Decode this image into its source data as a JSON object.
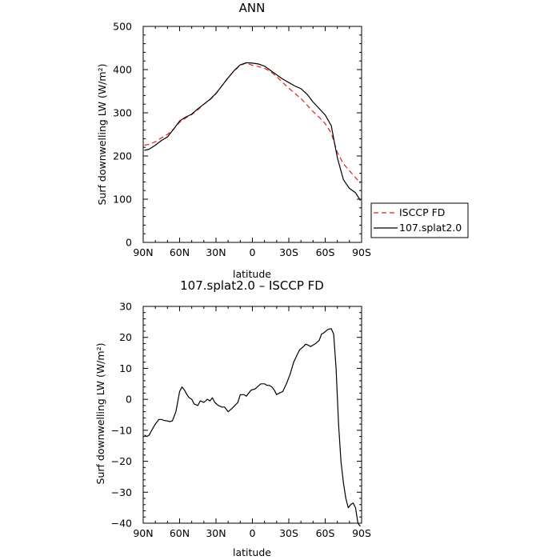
{
  "colors": {
    "model": "#000000",
    "obs": "#e0201c",
    "axis": "#000000",
    "background": "#ffffff"
  },
  "chart_data": [
    {
      "type": "line",
      "title": "ANN",
      "xlabel": "latitude",
      "ylabel": "Surf downwelling LW (W/m²)",
      "xlim": [
        90,
        -90
      ],
      "ylim": [
        0,
        500
      ],
      "x_ticks": [
        90,
        60,
        30,
        0,
        -30,
        -60,
        -90
      ],
      "x_tick_labels": [
        "90N",
        "60N",
        "30N",
        "0",
        "30S",
        "60S",
        "90S"
      ],
      "y_ticks": [
        0,
        100,
        200,
        300,
        400,
        500
      ],
      "y_tick_labels": [
        "0",
        "100",
        "200",
        "300",
        "400",
        "500"
      ],
      "grid": false,
      "legend_position": "right-bottom",
      "series": [
        {
          "name": "ISCCP FD",
          "style": "dashed",
          "color": "#e0201c",
          "x": [
            89,
            85,
            80,
            75,
            70,
            65,
            60,
            55,
            50,
            45,
            40,
            35,
            30,
            25,
            20,
            15,
            10,
            5,
            0,
            -5,
            -10,
            -15,
            -20,
            -25,
            -30,
            -35,
            -40,
            -45,
            -50,
            -55,
            -60,
            -65,
            -70,
            -75,
            -80,
            -85,
            -89
          ],
          "y": [
            225,
            227,
            233,
            242,
            250,
            262,
            278,
            288,
            296,
            307,
            320,
            330,
            344,
            363,
            382,
            397,
            410,
            415,
            410,
            407,
            403,
            395,
            384,
            370,
            357,
            345,
            333,
            318,
            303,
            290,
            275,
            253,
            208,
            182,
            166,
            150,
            137
          ]
        },
        {
          "name": "107.splat2.0",
          "style": "solid",
          "color": "#000000",
          "x": [
            89,
            85,
            80,
            75,
            70,
            65,
            60,
            55,
            50,
            45,
            40,
            35,
            30,
            25,
            20,
            15,
            10,
            5,
            0,
            -5,
            -10,
            -15,
            -20,
            -25,
            -30,
            -35,
            -40,
            -45,
            -50,
            -55,
            -60,
            -65,
            -70,
            -75,
            -80,
            -85,
            -89
          ],
          "y": [
            213,
            216,
            225,
            236,
            244,
            262,
            281,
            290,
            297,
            309,
            320,
            331,
            345,
            363,
            381,
            398,
            411,
            416,
            415,
            413,
            408,
            398,
            388,
            378,
            370,
            362,
            356,
            343,
            325,
            310,
            295,
            270,
            196,
            145,
            125,
            115,
            97
          ]
        }
      ]
    },
    {
      "type": "line",
      "title": "107.splat2.0 – ISCCP FD",
      "xlabel": "latitude",
      "ylabel": "Surf downwelling LW (W/m²)",
      "xlim": [
        90,
        -90
      ],
      "ylim": [
        -40,
        30
      ],
      "x_ticks": [
        90,
        60,
        30,
        0,
        -30,
        -60,
        -90
      ],
      "x_tick_labels": [
        "90N",
        "60N",
        "30N",
        "0",
        "30S",
        "60S",
        "90S"
      ],
      "y_ticks": [
        -40,
        -30,
        -20,
        -10,
        0,
        10,
        20,
        30
      ],
      "y_tick_labels": [
        "−40",
        "−30",
        "−20",
        "−10",
        "0",
        "10",
        "20",
        "30"
      ],
      "grid": false,
      "series": [
        {
          "style": "solid",
          "color": "#000000",
          "x": [
            89,
            87,
            85,
            83,
            80,
            77,
            75,
            73,
            70,
            68,
            66,
            63,
            60,
            58,
            56,
            54,
            52,
            50,
            48,
            45,
            43,
            40,
            37,
            35,
            33,
            31,
            28,
            25,
            23,
            20,
            17,
            15,
            12,
            10,
            7,
            5,
            3,
            1,
            -2,
            -4,
            -7,
            -10,
            -12,
            -14,
            -16,
            -18,
            -20,
            -22,
            -25,
            -28,
            -31,
            -34,
            -37,
            -39,
            -42,
            -44,
            -46,
            -48,
            -50,
            -52,
            -55,
            -57,
            -59,
            -61,
            -63,
            -65,
            -67,
            -69,
            -71,
            -73,
            -75,
            -77,
            -79,
            -81,
            -83,
            -85,
            -87,
            -89
          ],
          "y": [
            -11.5,
            -12,
            -11.5,
            -10,
            -8,
            -6.5,
            -6.5,
            -6.8,
            -7,
            -7.2,
            -7,
            -4,
            2.5,
            4,
            3,
            1.5,
            0.5,
            0,
            -1.5,
            -2,
            -0.5,
            -1,
            0,
            -0.5,
            0.5,
            -1,
            -2,
            -2.5,
            -2.5,
            -4,
            -3,
            -2.2,
            -1,
            1.5,
            1.5,
            1,
            2,
            3,
            3.3,
            4,
            5,
            5,
            4.5,
            4.5,
            4,
            3,
            1.5,
            2,
            2.5,
            5,
            8,
            12,
            14.5,
            16,
            17,
            17.8,
            17.5,
            17,
            17.5,
            18,
            19,
            21,
            21.5,
            22.2,
            22.7,
            22.8,
            21,
            10,
            -8,
            -20,
            -27,
            -32,
            -35,
            -34,
            -33.5,
            -35,
            -40,
            -41
          ]
        }
      ]
    }
  ]
}
